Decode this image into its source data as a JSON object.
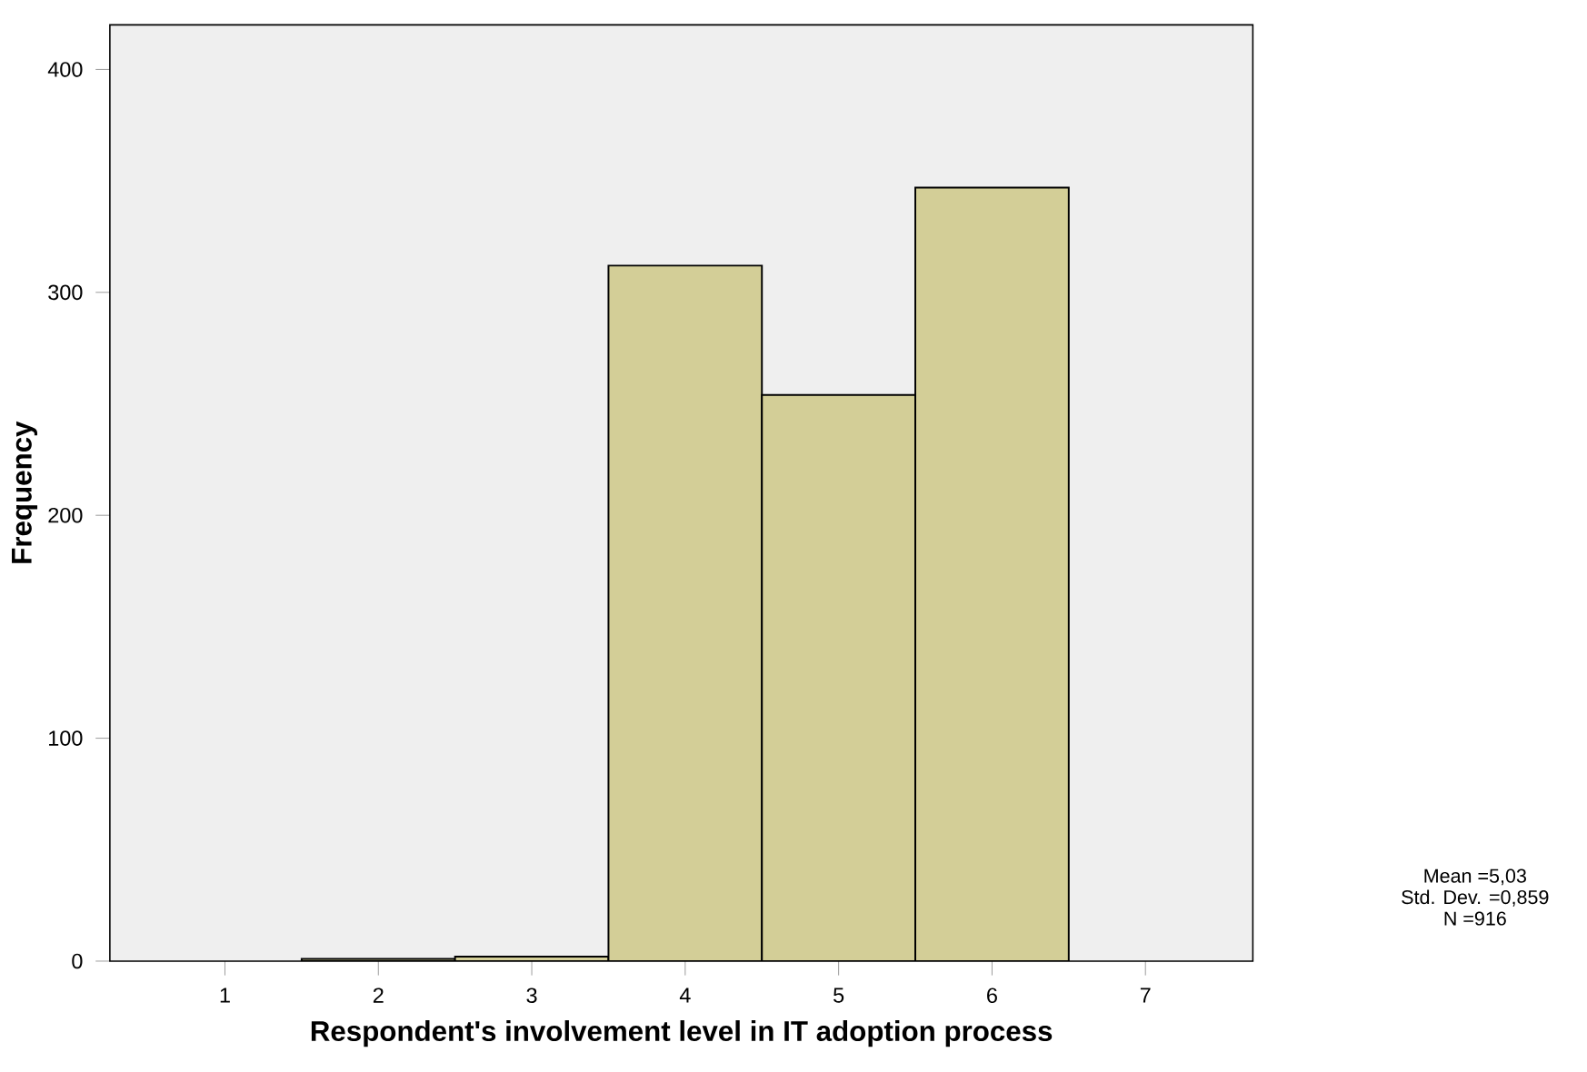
{
  "chart_data": {
    "type": "histogram",
    "xlabel": "Respondent's involvement level in IT adoption process",
    "ylabel": "Frequency",
    "bins": [
      1.5,
      2.5,
      3.5,
      4.5,
      5.5,
      6.5
    ],
    "values": [
      1,
      2,
      312,
      254,
      347
    ],
    "color": "#d3ce97",
    "xlim": [
      0.25,
      7.7
    ],
    "xticks": [
      1,
      2,
      3,
      4,
      5,
      6,
      7
    ],
    "ylim": [
      0,
      420
    ],
    "yticks": [
      0,
      100,
      200,
      300,
      400
    ],
    "annotations": [
      "Mean =5,03",
      "Std. Dev. =0,859",
      "N =916"
    ]
  }
}
